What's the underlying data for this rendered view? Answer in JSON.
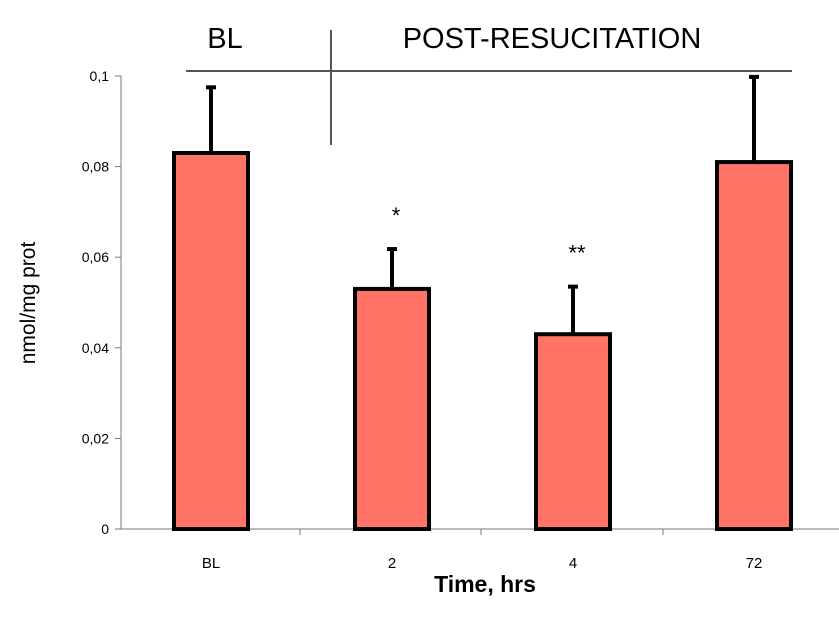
{
  "chart_data": {
    "type": "bar",
    "categories": [
      "BL",
      "2",
      "4",
      "72"
    ],
    "values": [
      0.083,
      0.053,
      0.043,
      0.081
    ],
    "error_upper": [
      0.0975,
      0.0618,
      0.0535,
      0.0998
    ],
    "significance": [
      "",
      "*",
      "**",
      ""
    ],
    "xlabel": "Time, hrs",
    "ylabel": "nmol/mg prot",
    "ylim": [
      0,
      0.1
    ],
    "yticks": [
      0,
      0.02,
      0.04,
      0.06,
      0.08,
      0.1
    ],
    "ytick_labels": [
      "0",
      "0,02",
      "0,04",
      "0,06",
      "0,08",
      "0,1"
    ],
    "bar_color": "#FF7466",
    "edge_color": "#000000",
    "grid": false,
    "group_labels": {
      "baseline": "BL",
      "post": "POST-RESUCITATION"
    }
  }
}
